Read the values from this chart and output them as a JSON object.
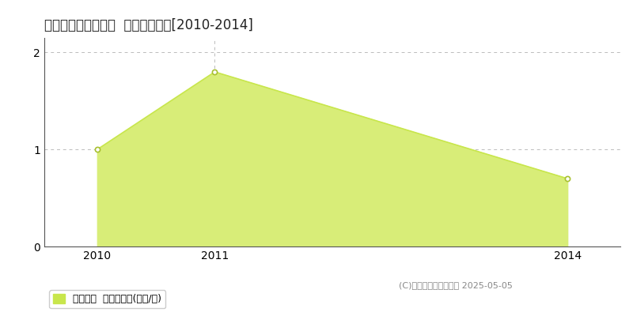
{
  "title": "北津軽郡板柳町太田  土地価格推移[2010-2014]",
  "years": [
    2010,
    2011,
    2014
  ],
  "values": [
    1.0,
    1.8,
    0.7
  ],
  "line_color": "#c8e64c",
  "fill_color": "#d8ed78",
  "marker_color": "#ffffff",
  "marker_edge_color": "#a8c030",
  "grid_color": "#bbbbbb",
  "xlim_left": 2009.55,
  "xlim_right": 2014.45,
  "ylim": [
    0,
    2.15
  ],
  "yticks": [
    0,
    1,
    2
  ],
  "xticks": [
    2010,
    2011,
    2014
  ],
  "legend_label": "土地価格  平均坪単価(万円/坪)",
  "legend_color": "#c8e64c",
  "copyright": "(C)土地価格ドットコム 2025-05-05",
  "bg_color": "#ffffff",
  "plot_bg_color": "#ffffff"
}
